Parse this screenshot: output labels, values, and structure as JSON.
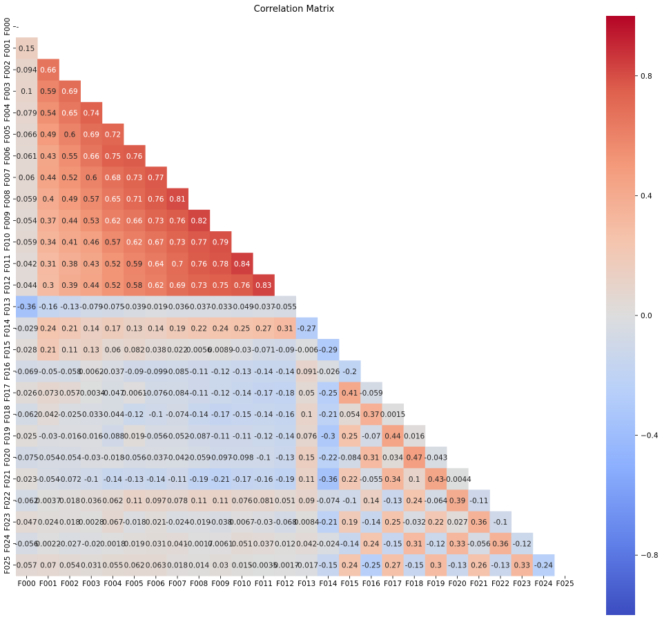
{
  "chart_data": {
    "type": "heatmap",
    "title": "Correlation Matrix",
    "xlabel": "",
    "ylabel": "",
    "colormap": "coolwarm",
    "vmin": -1,
    "vmax": 1,
    "mask": "upper-triangle including diagonal",
    "diag_label": "-",
    "labels": [
      "F000",
      "F001",
      "F002",
      "F003",
      "F004",
      "F005",
      "F006",
      "F007",
      "F008",
      "F009",
      "F010",
      "F011",
      "F012",
      "F013",
      "F014",
      "F015",
      "F016",
      "F017",
      "F018",
      "F019",
      "F020",
      "F021",
      "F022",
      "F023",
      "F024",
      "F025"
    ],
    "colorbar_ticks": [
      "0.8",
      "0.4",
      "0.0",
      "-0.4",
      "-0.8"
    ],
    "colorbar_tick_values": [
      0.8,
      0.4,
      0.0,
      -0.4,
      -0.8
    ],
    "colors": {
      "low": "#3b4cc0",
      "mid": "#dddddd",
      "high": "#b40426"
    },
    "rows": [
      [],
      [
        "0.15"
      ],
      [
        "0.094",
        "0.66"
      ],
      [
        "0.1",
        "0.59",
        "0.69"
      ],
      [
        "0.079",
        "0.54",
        "0.65",
        "0.74"
      ],
      [
        "0.066",
        "0.49",
        "0.6",
        "0.69",
        "0.72"
      ],
      [
        "0.061",
        "0.43",
        "0.55",
        "0.66",
        "0.75",
        "0.76"
      ],
      [
        "0.06",
        "0.44",
        "0.52",
        "0.6",
        "0.68",
        "0.73",
        "0.77"
      ],
      [
        "0.059",
        "0.4",
        "0.49",
        "0.57",
        "0.65",
        "0.71",
        "0.76",
        "0.81"
      ],
      [
        "0.054",
        "0.37",
        "0.44",
        "0.53",
        "0.62",
        "0.66",
        "0.73",
        "0.76",
        "0.82"
      ],
      [
        "0.059",
        "0.34",
        "0.41",
        "0.46",
        "0.57",
        "0.62",
        "0.67",
        "0.73",
        "0.77",
        "0.79"
      ],
      [
        "0.042",
        "0.31",
        "0.38",
        "0.43",
        "0.52",
        "0.59",
        "0.64",
        "0.7",
        "0.76",
        "0.78",
        "0.84"
      ],
      [
        "0.044",
        "0.3",
        "0.39",
        "0.44",
        "0.52",
        "0.58",
        "0.62",
        "0.69",
        "0.73",
        "0.75",
        "0.76",
        "0.83"
      ],
      [
        "-0.36",
        "-0.16",
        "-0.13",
        "-0.079",
        "-0.075",
        "-0.039",
        "-0.019",
        "-0.036",
        "-0.037",
        "-0.033",
        "-0.049",
        "-0.037",
        "-0.055"
      ],
      [
        "-0.029",
        "0.24",
        "0.21",
        "0.14",
        "0.17",
        "0.13",
        "0.14",
        "0.19",
        "0.22",
        "0.24",
        "0.25",
        "0.27",
        "0.31",
        "-0.27"
      ],
      [
        "0.028",
        "0.21",
        "0.11",
        "0.13",
        "0.06",
        "0.082",
        "0.038",
        "0.022",
        "0.0056",
        "0.0089",
        "-0.03",
        "-0.071",
        "-0.09",
        "-0.006",
        "-0.29"
      ],
      [
        "-0.069",
        "-0.05",
        "-0.058",
        "0.0062",
        "-0.037",
        "-0.09",
        "-0.099",
        "-0.085",
        "-0.11",
        "-0.12",
        "-0.13",
        "-0.14",
        "-0.14",
        "0.091",
        "-0.026",
        "-0.2"
      ],
      [
        "0.026",
        "0.073",
        "0.057",
        "-0.0034",
        "-0.047",
        "0.0061",
        "-0.076",
        "-0.084",
        "-0.11",
        "-0.12",
        "-0.14",
        "-0.17",
        "-0.18",
        "0.05",
        "-0.25",
        "0.41",
        "-0.059"
      ],
      [
        "-0.062",
        "0.042",
        "-0.025",
        "-0.033",
        "-0.044",
        "-0.12",
        "-0.1",
        "-0.074",
        "-0.14",
        "-0.17",
        "-0.15",
        "-0.14",
        "-0.16",
        "0.1",
        "-0.21",
        "0.054",
        "0.37",
        "0.0015"
      ],
      [
        "0.025",
        "-0.03",
        "-0.016",
        "-0.016",
        "-0.088",
        "0.019",
        "-0.056",
        "-0.052",
        "-0.087",
        "-0.11",
        "-0.11",
        "-0.12",
        "-0.14",
        "0.076",
        "-0.3",
        "0.25",
        "-0.07",
        "0.44",
        "0.016"
      ],
      [
        "-0.075",
        "-0.054",
        "-0.054",
        "-0.03",
        "-0.018",
        "-0.056",
        "-0.037",
        "-0.042",
        "-0.059",
        "-0.097",
        "-0.098",
        "-0.1",
        "-0.13",
        "0.15",
        "-0.22",
        "-0.084",
        "0.31",
        "0.034",
        "0.47",
        "-0.043"
      ],
      [
        "0.023",
        "-0.054",
        "-0.072",
        "-0.1",
        "-0.14",
        "-0.13",
        "-0.14",
        "-0.11",
        "-0.19",
        "-0.21",
        "-0.17",
        "-0.16",
        "-0.19",
        "0.11",
        "-0.36",
        "0.22",
        "-0.055",
        "0.34",
        "0.1",
        "0.43",
        "-0.0044"
      ],
      [
        "-0.062",
        "0.0037",
        "0.018",
        "0.036",
        "0.062",
        "0.11",
        "0.097",
        "0.078",
        "0.11",
        "0.11",
        "0.076",
        "0.081",
        "0.051",
        "0.09",
        "-0.074",
        "-0.1",
        "0.14",
        "-0.13",
        "0.24",
        "-0.064",
        "0.39",
        "-0.11"
      ],
      [
        "0.047",
        "0.024",
        "0.018",
        "0.0028",
        "0.067",
        "-0.018",
        "0.021",
        "-0.024",
        "-0.019",
        "-0.038",
        "0.0067",
        "-0.03",
        "-0.068",
        "0.0084",
        "-0.21",
        "0.19",
        "-0.14",
        "0.25",
        "-0.032",
        "0.22",
        "0.027",
        "0.36",
        "-0.1"
      ],
      [
        "-0.056",
        "0.0022",
        "-0.027",
        "-0.02",
        "0.0018",
        "0.019",
        "0.031",
        "0.041",
        "-0.0017",
        "0.0061",
        "0.051",
        "0.037",
        "0.012",
        "0.042",
        "-0.024",
        "-0.14",
        "0.24",
        "-0.15",
        "0.31",
        "-0.12",
        "0.33",
        "-0.056",
        "0.36",
        "-0.12"
      ],
      [
        "0.057",
        "0.07",
        "0.054",
        "0.031",
        "0.055",
        "0.062",
        "0.063",
        "0.018",
        "0.014",
        "0.03",
        "0.015",
        "-0.0035",
        "-0.0017",
        "-0.017",
        "-0.15",
        "0.24",
        "-0.25",
        "0.27",
        "-0.15",
        "0.3",
        "-0.13",
        "0.26",
        "-0.13",
        "0.33",
        "-0.24"
      ]
    ]
  }
}
